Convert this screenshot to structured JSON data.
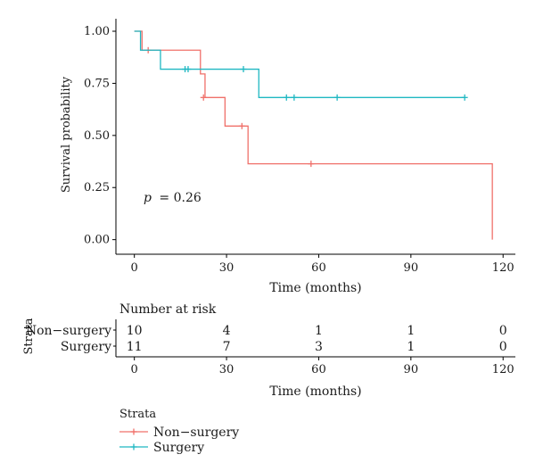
{
  "chart_data": {
    "type": "line",
    "subtype": "kaplan-meier",
    "xlabel": "Time (months)",
    "ylabel": "Survival probability",
    "xlim": [
      -6,
      124
    ],
    "ylim": [
      -0.07,
      1.06
    ],
    "x_ticks": [
      0,
      30,
      60,
      90,
      120
    ],
    "y_ticks": [
      0.0,
      0.25,
      0.5,
      0.75,
      1.0
    ],
    "x_tick_labels": [
      "0",
      "30",
      "60",
      "90",
      "120"
    ],
    "y_tick_labels": [
      "0.00",
      "0.25",
      "0.50",
      "0.75",
      "1.00"
    ],
    "annotation": {
      "p_symbol": "p",
      "p_value": "= 0.26"
    },
    "series": [
      {
        "name": "Non−surgery",
        "color": "#f0706a",
        "steps": [
          [
            0,
            1.0
          ],
          [
            2.5,
            0.909
          ],
          [
            21.5,
            0.795
          ],
          [
            23,
            0.682
          ],
          [
            29.5,
            0.545
          ],
          [
            37,
            0.364
          ],
          [
            116.5,
            0.0
          ]
        ],
        "end_x": 116.5,
        "censored": [
          [
            4.5,
            0.909
          ],
          [
            22.5,
            0.682
          ],
          [
            35,
            0.545
          ],
          [
            57.5,
            0.364
          ]
        ]
      },
      {
        "name": "Surgery",
        "color": "#1fb8c2",
        "steps": [
          [
            0,
            1.0
          ],
          [
            2,
            0.909
          ],
          [
            8.5,
            0.818
          ],
          [
            40.5,
            0.682
          ]
        ],
        "end_x": 107.5,
        "censored": [
          [
            16.5,
            0.818
          ],
          [
            17.5,
            0.818
          ],
          [
            35.5,
            0.818
          ],
          [
            49.5,
            0.682
          ],
          [
            52,
            0.682
          ],
          [
            66,
            0.682
          ],
          [
            107.5,
            0.682
          ]
        ]
      }
    ],
    "risk_table": {
      "title": "Number at risk",
      "strata_label": "Strata",
      "times": [
        0,
        30,
        60,
        90,
        120
      ],
      "x_tick_labels": [
        "0",
        "30",
        "60",
        "90",
        "120"
      ],
      "xlabel": "Time (months)",
      "rows": [
        {
          "name": "Non−surgery",
          "color": "#f0706a",
          "counts": [
            "10",
            "4",
            "1",
            "1",
            "0"
          ]
        },
        {
          "name": "Surgery",
          "color": "#1fb8c2",
          "counts": [
            "11",
            "7",
            "3",
            "1",
            "0"
          ]
        }
      ]
    },
    "legend": {
      "title": "Strata",
      "position": "bottom-left",
      "entries": [
        {
          "label": "Non−surgery",
          "color": "#f0706a"
        },
        {
          "label": "Surgery",
          "color": "#1fb8c2"
        }
      ]
    }
  }
}
